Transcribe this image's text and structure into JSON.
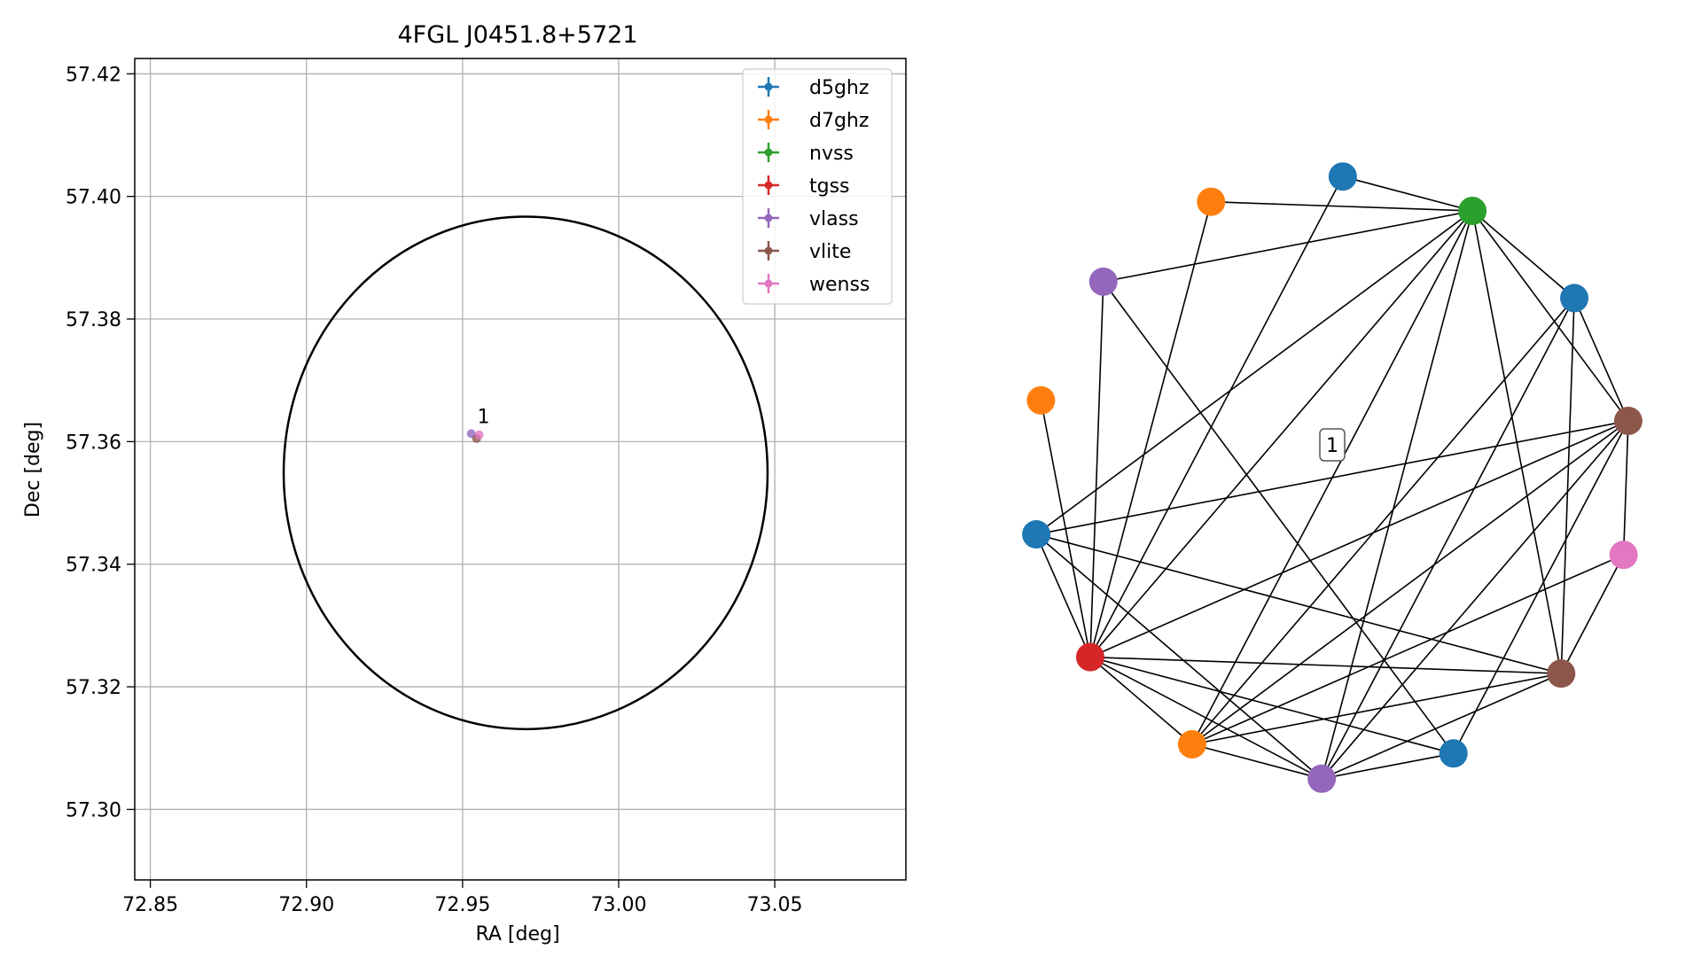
{
  "chart_data": [
    {
      "type": "scatter",
      "title": "4FGL J0451.8+5721",
      "xlabel": "RA [deg]",
      "ylabel": "Dec [deg]",
      "xlim": [
        72.845,
        73.092
      ],
      "ylim": [
        57.2885,
        57.4225
      ],
      "xticks": [
        72.85,
        72.9,
        72.95,
        73.0,
        73.05
      ],
      "xtick_labels": [
        "72.85",
        "72.90",
        "72.95",
        "73.00",
        "73.05"
      ],
      "yticks": [
        57.3,
        57.32,
        57.34,
        57.36,
        57.38,
        57.4,
        57.42
      ],
      "ytick_labels": [
        "57.30",
        "57.32",
        "57.34",
        "57.36",
        "57.38",
        "57.40",
        "57.42"
      ],
      "grid": true,
      "legend_position": "top-right",
      "legend": [
        {
          "name": "d5ghz",
          "color": "#1f77b4"
        },
        {
          "name": "d7ghz",
          "color": "#ff7f0e"
        },
        {
          "name": "nvss",
          "color": "#2ca02c"
        },
        {
          "name": "tgss",
          "color": "#d62728"
        },
        {
          "name": "vlass",
          "color": "#9467bd"
        },
        {
          "name": "vlite",
          "color": "#8c564b"
        },
        {
          "name": "wenss",
          "color": "#e377c2"
        }
      ],
      "ellipse": {
        "center_ra": 72.9702,
        "center_dec": 57.3549,
        "semi_axis_ra": 0.0775,
        "semi_axis_dec": 0.0418,
        "color": "#000000"
      },
      "points": [
        {
          "catalog": "vlass",
          "ra": 72.9528,
          "dec": 57.3613
        },
        {
          "catalog": "vlite",
          "ra": 72.9545,
          "dec": 57.3605
        },
        {
          "catalog": "wenss",
          "ra": 72.9553,
          "dec": 57.3611
        }
      ],
      "annotations": [
        {
          "text": "1",
          "ra": 72.9553,
          "dec": 57.3636
        }
      ]
    },
    {
      "type": "network",
      "label": "1",
      "nodes": [
        {
          "id": "n0",
          "catalog": "d5ghz",
          "color": "#1f77b4"
        },
        {
          "id": "n1",
          "catalog": "nvss",
          "color": "#2ca02c"
        },
        {
          "id": "n2",
          "catalog": "d5ghz",
          "color": "#1f77b4"
        },
        {
          "id": "n3",
          "catalog": "vlite",
          "color": "#8c564b"
        },
        {
          "id": "n4",
          "catalog": "wenss",
          "color": "#e377c2"
        },
        {
          "id": "n5",
          "catalog": "vlite",
          "color": "#8c564b"
        },
        {
          "id": "n6",
          "catalog": "d5ghz",
          "color": "#1f77b4"
        },
        {
          "id": "n7",
          "catalog": "vlass",
          "color": "#9467bd"
        },
        {
          "id": "n8",
          "catalog": "d7ghz",
          "color": "#ff7f0e"
        },
        {
          "id": "n9",
          "catalog": "tgss",
          "color": "#d62728"
        },
        {
          "id": "n10",
          "catalog": "d5ghz",
          "color": "#1f77b4"
        },
        {
          "id": "n11",
          "catalog": "d7ghz",
          "color": "#ff7f0e"
        },
        {
          "id": "n12",
          "catalog": "vlass",
          "color": "#9467bd"
        },
        {
          "id": "n13",
          "catalog": "d7ghz",
          "color": "#ff7f0e"
        }
      ],
      "edges": [
        [
          "n0",
          "n1"
        ],
        [
          "n0",
          "n9"
        ],
        [
          "n13",
          "n1"
        ],
        [
          "n13",
          "n9"
        ],
        [
          "n1",
          "n2"
        ],
        [
          "n1",
          "n3"
        ],
        [
          "n1",
          "n12"
        ],
        [
          "n1",
          "n10"
        ],
        [
          "n1",
          "n5"
        ],
        [
          "n1",
          "n9"
        ],
        [
          "n1",
          "n8"
        ],
        [
          "n1",
          "n7"
        ],
        [
          "n2",
          "n3"
        ],
        [
          "n2",
          "n5"
        ],
        [
          "n2",
          "n8"
        ],
        [
          "n2",
          "n7"
        ],
        [
          "n3",
          "n4"
        ],
        [
          "n3",
          "n9"
        ],
        [
          "n3",
          "n6"
        ],
        [
          "n3",
          "n10"
        ],
        [
          "n3",
          "n8"
        ],
        [
          "n3",
          "n7"
        ],
        [
          "n12",
          "n6"
        ],
        [
          "n12",
          "n9"
        ],
        [
          "n11",
          "n9"
        ],
        [
          "n4",
          "n5"
        ],
        [
          "n4",
          "n8"
        ],
        [
          "n5",
          "n9"
        ],
        [
          "n5",
          "n10"
        ],
        [
          "n5",
          "n8"
        ],
        [
          "n5",
          "n7"
        ],
        [
          "n6",
          "n9"
        ],
        [
          "n6",
          "n7"
        ],
        [
          "n9",
          "n10"
        ],
        [
          "n9",
          "n8"
        ],
        [
          "n9",
          "n7"
        ],
        [
          "n8",
          "n7"
        ],
        [
          "n10",
          "n7"
        ]
      ]
    }
  ]
}
